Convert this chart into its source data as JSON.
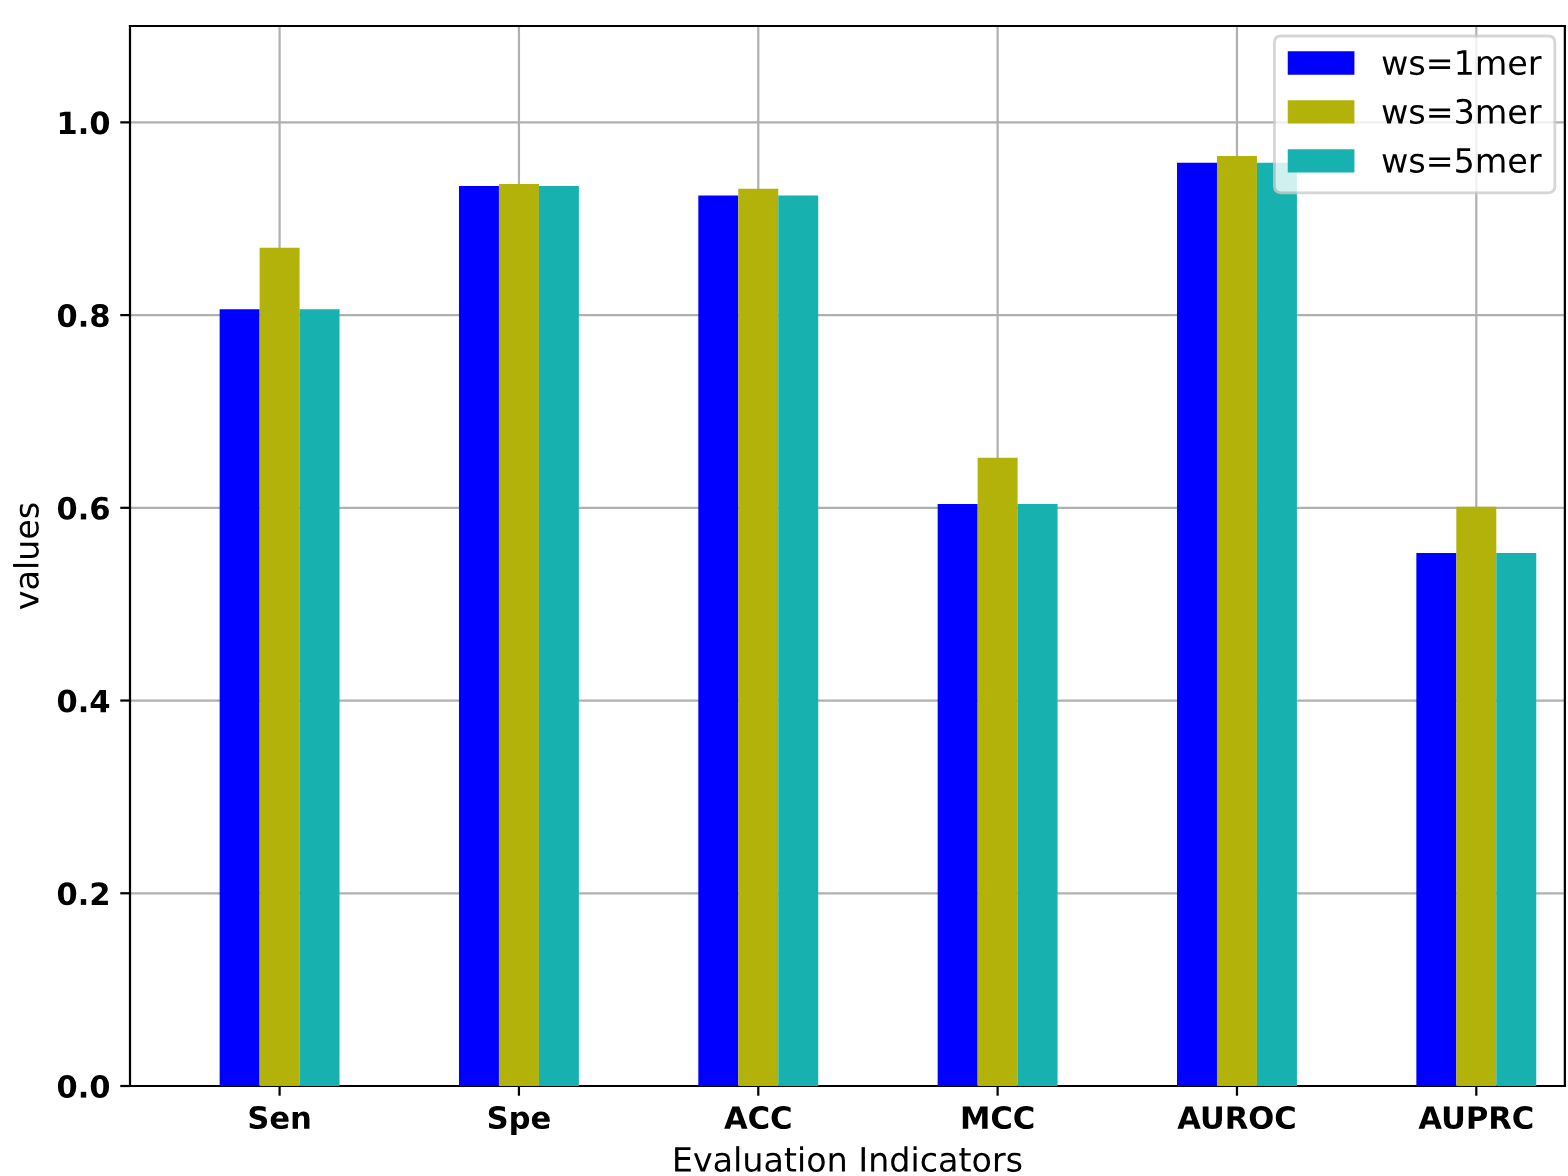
{
  "chart_data": {
    "type": "bar",
    "xlabel": "Evaluation Indicators",
    "ylabel": "values",
    "categories": [
      "Sen",
      "Spe",
      "ACC",
      "MCC",
      "AUROC",
      "AUPRC"
    ],
    "series": [
      {
        "name": "ws=1mer",
        "color": "#0000ff",
        "values": [
          0.806,
          0.934,
          0.924,
          0.604,
          0.958,
          0.553
        ]
      },
      {
        "name": "ws=3mer",
        "color": "#b2b20a",
        "values": [
          0.87,
          0.936,
          0.931,
          0.652,
          0.965,
          0.601
        ]
      },
      {
        "name": "ws=5mer",
        "color": "#17b2b0",
        "values": [
          0.806,
          0.934,
          0.924,
          0.604,
          0.958,
          0.553
        ]
      }
    ],
    "ylim": [
      0,
      1.1
    ],
    "yticks": [
      {
        "value": 0,
        "label": "0.0"
      },
      0.2,
      0.4,
      0.6,
      0.8,
      {
        "value": 1,
        "label": "1.0"
      }
    ],
    "grid": true,
    "legend": "top right"
  }
}
